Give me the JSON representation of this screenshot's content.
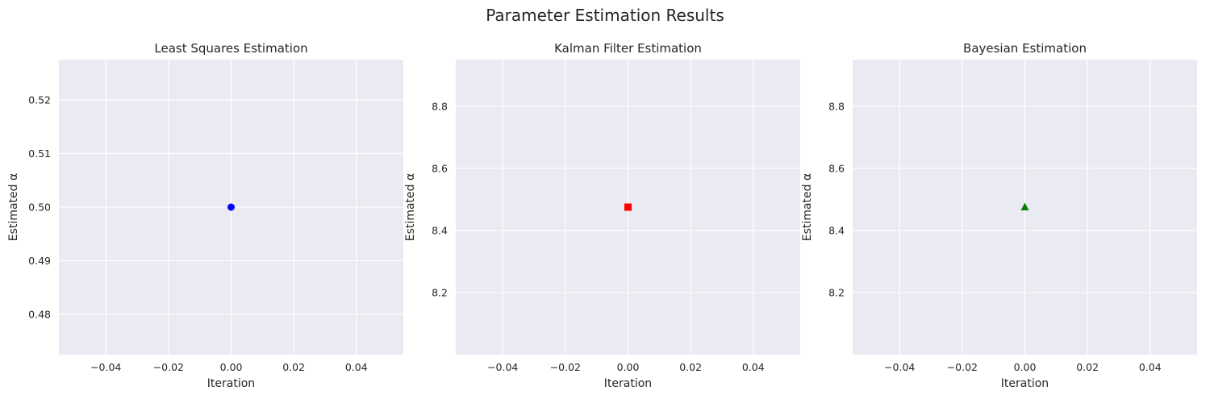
{
  "figure": {
    "title": "Parameter Estimation Results"
  },
  "chart_data": [
    {
      "type": "scatter",
      "title": "Least Squares Estimation",
      "xlabel": "Iteration",
      "ylabel": "Estimated α",
      "xlim": [
        -0.055,
        0.055
      ],
      "ylim": [
        0.4725,
        0.5275
      ],
      "xticks": [
        -0.04,
        -0.02,
        0.0,
        0.02,
        0.04
      ],
      "xtick_labels": [
        "−0.04",
        "−0.02",
        "0.00",
        "0.02",
        "0.04"
      ],
      "yticks": [
        0.48,
        0.49,
        0.5,
        0.51,
        0.52
      ],
      "ytick_labels": [
        "0.48",
        "0.49",
        "0.50",
        "0.51",
        "0.52"
      ],
      "grid": true,
      "series": [
        {
          "x": [
            0
          ],
          "y": [
            0.5
          ],
          "marker": "circle",
          "color": "#0000ff"
        }
      ]
    },
    {
      "type": "scatter",
      "title": "Kalman Filter Estimation",
      "xlabel": "Iteration",
      "ylabel": "Estimated α",
      "xlim": [
        -0.055,
        0.055
      ],
      "ylim": [
        8.0,
        8.95
      ],
      "xticks": [
        -0.04,
        -0.02,
        0.0,
        0.02,
        0.04
      ],
      "xtick_labels": [
        "−0.04",
        "−0.02",
        "0.00",
        "0.02",
        "0.04"
      ],
      "yticks": [
        8.2,
        8.4,
        8.6,
        8.8
      ],
      "ytick_labels": [
        "8.2",
        "8.4",
        "8.6",
        "8.8"
      ],
      "grid": true,
      "series": [
        {
          "x": [
            0
          ],
          "y": [
            8.475
          ],
          "marker": "square",
          "color": "#ff0000"
        }
      ]
    },
    {
      "type": "scatter",
      "title": "Bayesian Estimation",
      "xlabel": "Iteration",
      "ylabel": "Estimated α",
      "xlim": [
        -0.055,
        0.055
      ],
      "ylim": [
        8.0,
        8.95
      ],
      "xticks": [
        -0.04,
        -0.02,
        0.0,
        0.02,
        0.04
      ],
      "xtick_labels": [
        "−0.04",
        "−0.02",
        "0.00",
        "0.02",
        "0.04"
      ],
      "yticks": [
        8.2,
        8.4,
        8.6,
        8.8
      ],
      "ytick_labels": [
        "8.2",
        "8.4",
        "8.6",
        "8.8"
      ],
      "grid": true,
      "series": [
        {
          "x": [
            0
          ],
          "y": [
            8.475
          ],
          "marker": "triangle",
          "color": "#008000"
        }
      ]
    }
  ]
}
